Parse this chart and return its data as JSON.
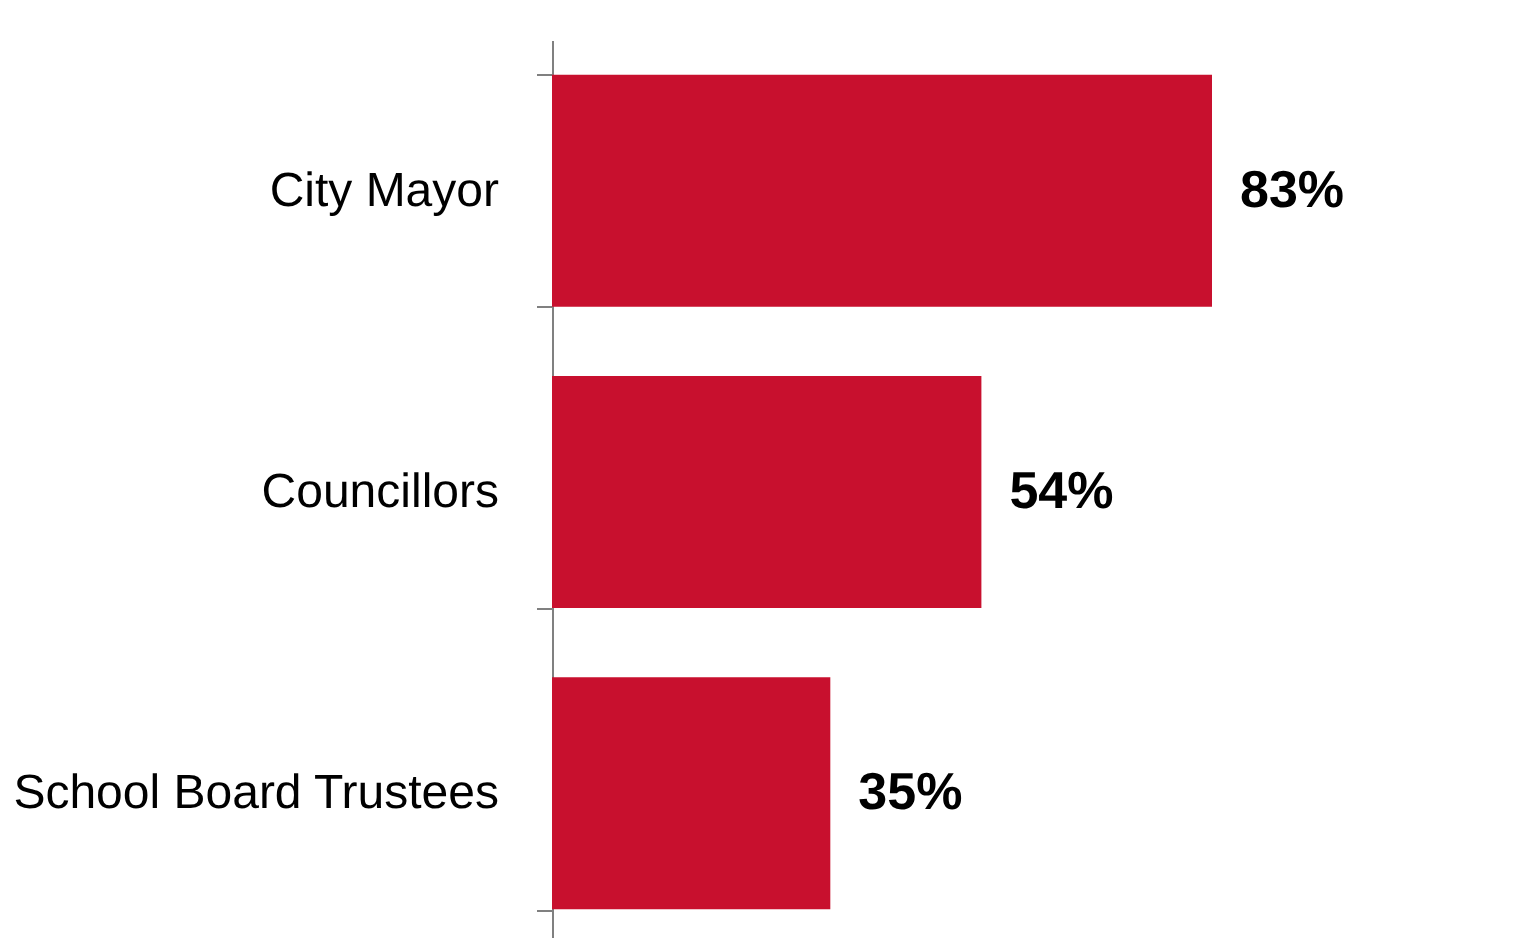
{
  "chart_data": {
    "type": "bar",
    "orientation": "horizontal",
    "categories": [
      "City Mayor",
      "Councillors",
      "School Board Trustees"
    ],
    "values": [
      83,
      54,
      35
    ],
    "value_labels": [
      "83%",
      "54%",
      "35%"
    ],
    "color": "#c8102e"
  }
}
